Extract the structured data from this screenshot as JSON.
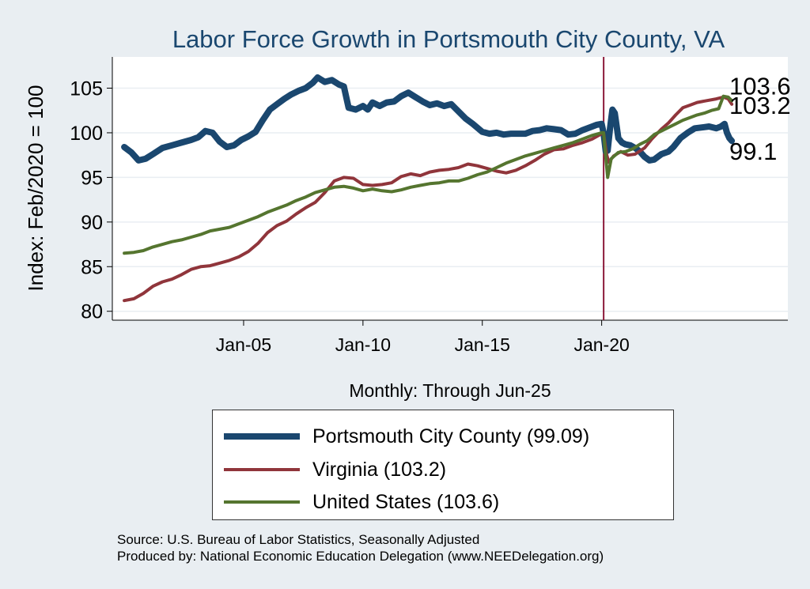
{
  "chart_data": {
    "type": "line",
    "title": "Labor Force Growth in Portsmouth City  County, VA",
    "xlabel": "Monthly: Through Jun-25",
    "ylabel": "Index: Feb/2020 = 100",
    "x_ticks": [
      {
        "label": "Jan-05",
        "year": 2005.0
      },
      {
        "label": "Jan-10",
        "year": 2010.0
      },
      {
        "label": "Jan-15",
        "year": 2015.0
      },
      {
        "label": "Jan-20",
        "year": 2020.0
      }
    ],
    "xlim": [
      1999.5,
      2027.8
    ],
    "y_ticks": [
      80,
      85,
      90,
      95,
      100,
      105
    ],
    "ylim": [
      79,
      108.5
    ],
    "grid": true,
    "reference_line": {
      "year": 2020.083,
      "color": "#8b1a3a"
    },
    "series": [
      {
        "name": "Portsmouth City  County",
        "legend": "Portsmouth City  County (99.09)",
        "end_label": "99.1",
        "color": "#1a476f",
        "width": 8,
        "points": [
          [
            2000.0,
            98.4
          ],
          [
            2000.3,
            97.8
          ],
          [
            2000.6,
            96.9
          ],
          [
            2000.9,
            97.1
          ],
          [
            2001.2,
            97.6
          ],
          [
            2001.6,
            98.3
          ],
          [
            2002.0,
            98.6
          ],
          [
            2002.4,
            98.9
          ],
          [
            2002.8,
            99.2
          ],
          [
            2003.1,
            99.5
          ],
          [
            2003.4,
            100.2
          ],
          [
            2003.7,
            100.0
          ],
          [
            2004.0,
            99.0
          ],
          [
            2004.3,
            98.4
          ],
          [
            2004.6,
            98.6
          ],
          [
            2004.9,
            99.2
          ],
          [
            2005.2,
            99.6
          ],
          [
            2005.5,
            100.1
          ],
          [
            2005.8,
            101.4
          ],
          [
            2006.1,
            102.6
          ],
          [
            2006.4,
            103.2
          ],
          [
            2006.7,
            103.8
          ],
          [
            2007.0,
            104.3
          ],
          [
            2007.3,
            104.7
          ],
          [
            2007.6,
            105.0
          ],
          [
            2007.9,
            105.6
          ],
          [
            2008.1,
            106.2
          ],
          [
            2008.4,
            105.7
          ],
          [
            2008.7,
            105.9
          ],
          [
            2009.0,
            105.4
          ],
          [
            2009.2,
            105.2
          ],
          [
            2009.4,
            102.8
          ],
          [
            2009.7,
            102.6
          ],
          [
            2010.0,
            103.0
          ],
          [
            2010.2,
            102.6
          ],
          [
            2010.4,
            103.4
          ],
          [
            2010.7,
            103.0
          ],
          [
            2011.0,
            103.4
          ],
          [
            2011.3,
            103.5
          ],
          [
            2011.6,
            104.1
          ],
          [
            2011.9,
            104.5
          ],
          [
            2012.2,
            104.0
          ],
          [
            2012.5,
            103.5
          ],
          [
            2012.8,
            103.1
          ],
          [
            2013.1,
            103.3
          ],
          [
            2013.4,
            103.0
          ],
          [
            2013.7,
            103.2
          ],
          [
            2014.0,
            102.4
          ],
          [
            2014.3,
            101.6
          ],
          [
            2014.6,
            101.0
          ],
          [
            2015.0,
            100.1
          ],
          [
            2015.3,
            99.9
          ],
          [
            2015.6,
            100.0
          ],
          [
            2015.9,
            99.8
          ],
          [
            2016.2,
            99.9
          ],
          [
            2016.5,
            99.9
          ],
          [
            2016.8,
            99.9
          ],
          [
            2017.1,
            100.2
          ],
          [
            2017.4,
            100.3
          ],
          [
            2017.7,
            100.5
          ],
          [
            2018.0,
            100.4
          ],
          [
            2018.3,
            100.3
          ],
          [
            2018.6,
            99.8
          ],
          [
            2018.9,
            99.9
          ],
          [
            2019.2,
            100.3
          ],
          [
            2019.5,
            100.6
          ],
          [
            2019.8,
            100.9
          ],
          [
            2020.0,
            101.0
          ],
          [
            2020.08,
            100.0
          ],
          [
            2020.17,
            97.9
          ],
          [
            2020.25,
            98.0
          ],
          [
            2020.35,
            100.5
          ],
          [
            2020.45,
            102.6
          ],
          [
            2020.55,
            102.2
          ],
          [
            2020.7,
            99.4
          ],
          [
            2020.85,
            98.9
          ],
          [
            2021.0,
            98.7
          ],
          [
            2021.2,
            98.6
          ],
          [
            2021.4,
            98.3
          ],
          [
            2021.6,
            97.9
          ],
          [
            2021.8,
            97.3
          ],
          [
            2022.0,
            96.9
          ],
          [
            2022.2,
            97.0
          ],
          [
            2022.5,
            97.6
          ],
          [
            2022.8,
            97.9
          ],
          [
            2023.0,
            98.4
          ],
          [
            2023.3,
            99.4
          ],
          [
            2023.6,
            100.0
          ],
          [
            2023.9,
            100.5
          ],
          [
            2024.2,
            100.6
          ],
          [
            2024.5,
            100.7
          ],
          [
            2024.8,
            100.5
          ],
          [
            2025.0,
            100.7
          ],
          [
            2025.15,
            101.0
          ],
          [
            2025.25,
            100.0
          ],
          [
            2025.35,
            99.4
          ],
          [
            2025.45,
            99.09
          ]
        ]
      },
      {
        "name": "Virginia",
        "legend": "Virginia (103.2)",
        "end_label": "103.2",
        "color": "#90353b",
        "width": 4,
        "points": [
          [
            2000.0,
            81.2
          ],
          [
            2000.4,
            81.4
          ],
          [
            2000.8,
            82.0
          ],
          [
            2001.2,
            82.8
          ],
          [
            2001.6,
            83.3
          ],
          [
            2002.0,
            83.6
          ],
          [
            2002.4,
            84.1
          ],
          [
            2002.8,
            84.7
          ],
          [
            2003.2,
            85.0
          ],
          [
            2003.6,
            85.1
          ],
          [
            2004.0,
            85.4
          ],
          [
            2004.4,
            85.7
          ],
          [
            2004.8,
            86.1
          ],
          [
            2005.2,
            86.7
          ],
          [
            2005.6,
            87.6
          ],
          [
            2006.0,
            88.8
          ],
          [
            2006.4,
            89.6
          ],
          [
            2006.8,
            90.1
          ],
          [
            2007.2,
            90.9
          ],
          [
            2007.6,
            91.6
          ],
          [
            2008.0,
            92.2
          ],
          [
            2008.4,
            93.3
          ],
          [
            2008.8,
            94.6
          ],
          [
            2009.2,
            95.0
          ],
          [
            2009.6,
            94.9
          ],
          [
            2010.0,
            94.2
          ],
          [
            2010.4,
            94.1
          ],
          [
            2010.8,
            94.2
          ],
          [
            2011.2,
            94.4
          ],
          [
            2011.6,
            95.1
          ],
          [
            2012.0,
            95.4
          ],
          [
            2012.4,
            95.2
          ],
          [
            2012.8,
            95.6
          ],
          [
            2013.2,
            95.8
          ],
          [
            2013.6,
            95.9
          ],
          [
            2014.0,
            96.1
          ],
          [
            2014.4,
            96.5
          ],
          [
            2014.8,
            96.3
          ],
          [
            2015.2,
            96.0
          ],
          [
            2015.6,
            95.7
          ],
          [
            2016.0,
            95.5
          ],
          [
            2016.4,
            95.8
          ],
          [
            2016.8,
            96.3
          ],
          [
            2017.2,
            96.9
          ],
          [
            2017.6,
            97.6
          ],
          [
            2018.0,
            98.1
          ],
          [
            2018.4,
            98.2
          ],
          [
            2018.8,
            98.6
          ],
          [
            2019.2,
            98.9
          ],
          [
            2019.6,
            99.3
          ],
          [
            2020.0,
            99.9
          ],
          [
            2020.08,
            100.0
          ],
          [
            2020.2,
            97.6
          ],
          [
            2020.3,
            96.7
          ],
          [
            2020.5,
            97.4
          ],
          [
            2020.8,
            97.9
          ],
          [
            2021.1,
            97.5
          ],
          [
            2021.4,
            97.6
          ],
          [
            2021.8,
            98.3
          ],
          [
            2022.1,
            99.3
          ],
          [
            2022.5,
            100.4
          ],
          [
            2022.8,
            101.1
          ],
          [
            2023.1,
            102.0
          ],
          [
            2023.4,
            102.8
          ],
          [
            2023.7,
            103.1
          ],
          [
            2024.0,
            103.4
          ],
          [
            2024.4,
            103.6
          ],
          [
            2024.8,
            103.8
          ],
          [
            2025.1,
            104.0
          ],
          [
            2025.3,
            103.8
          ],
          [
            2025.45,
            103.2
          ]
        ]
      },
      {
        "name": "United States",
        "legend": "United States (103.6)",
        "end_label": "103.6",
        "color": "#55752f",
        "width": 4,
        "points": [
          [
            2000.0,
            86.5
          ],
          [
            2000.4,
            86.6
          ],
          [
            2000.8,
            86.8
          ],
          [
            2001.2,
            87.2
          ],
          [
            2001.6,
            87.5
          ],
          [
            2002.0,
            87.8
          ],
          [
            2002.4,
            88.0
          ],
          [
            2002.8,
            88.3
          ],
          [
            2003.2,
            88.6
          ],
          [
            2003.6,
            89.0
          ],
          [
            2004.0,
            89.2
          ],
          [
            2004.4,
            89.4
          ],
          [
            2004.8,
            89.8
          ],
          [
            2005.2,
            90.2
          ],
          [
            2005.6,
            90.6
          ],
          [
            2006.0,
            91.1
          ],
          [
            2006.4,
            91.5
          ],
          [
            2006.8,
            91.9
          ],
          [
            2007.2,
            92.4
          ],
          [
            2007.6,
            92.8
          ],
          [
            2008.0,
            93.3
          ],
          [
            2008.4,
            93.6
          ],
          [
            2008.8,
            93.9
          ],
          [
            2009.2,
            94.0
          ],
          [
            2009.6,
            93.8
          ],
          [
            2010.0,
            93.5
          ],
          [
            2010.4,
            93.7
          ],
          [
            2010.8,
            93.5
          ],
          [
            2011.2,
            93.4
          ],
          [
            2011.6,
            93.6
          ],
          [
            2012.0,
            93.9
          ],
          [
            2012.4,
            94.1
          ],
          [
            2012.8,
            94.3
          ],
          [
            2013.2,
            94.4
          ],
          [
            2013.6,
            94.6
          ],
          [
            2014.0,
            94.6
          ],
          [
            2014.4,
            94.9
          ],
          [
            2014.8,
            95.3
          ],
          [
            2015.2,
            95.6
          ],
          [
            2015.6,
            96.1
          ],
          [
            2016.0,
            96.6
          ],
          [
            2016.4,
            97.0
          ],
          [
            2016.8,
            97.4
          ],
          [
            2017.2,
            97.7
          ],
          [
            2017.6,
            98.0
          ],
          [
            2018.0,
            98.3
          ],
          [
            2018.4,
            98.6
          ],
          [
            2018.8,
            98.9
          ],
          [
            2019.2,
            99.3
          ],
          [
            2019.6,
            99.7
          ],
          [
            2020.0,
            100.0
          ],
          [
            2020.08,
            100.0
          ],
          [
            2020.17,
            97.3
          ],
          [
            2020.25,
            95.0
          ],
          [
            2020.4,
            97.1
          ],
          [
            2020.7,
            97.8
          ],
          [
            2021.0,
            97.9
          ],
          [
            2021.3,
            98.2
          ],
          [
            2021.6,
            98.7
          ],
          [
            2021.9,
            99.1
          ],
          [
            2022.2,
            99.8
          ],
          [
            2022.5,
            100.2
          ],
          [
            2022.8,
            100.6
          ],
          [
            2023.1,
            101.0
          ],
          [
            2023.4,
            101.4
          ],
          [
            2023.7,
            101.7
          ],
          [
            2024.0,
            102.0
          ],
          [
            2024.3,
            102.2
          ],
          [
            2024.6,
            102.5
          ],
          [
            2024.9,
            102.7
          ],
          [
            2025.1,
            104.1
          ],
          [
            2025.3,
            104.0
          ],
          [
            2025.45,
            103.6
          ]
        ]
      }
    ]
  },
  "footer": {
    "source": "Source: U.S. Bureau of Labor Statistics, Seasonally Adjusted",
    "produced_by": "Produced by: National Economic Education Delegation (www.NEEDelegation.org)"
  },
  "colors": {
    "background": "#e9eef2",
    "plot_area": "#ffffff",
    "grid": "#e9eef2",
    "reference_line": "#8b1a3a"
  }
}
